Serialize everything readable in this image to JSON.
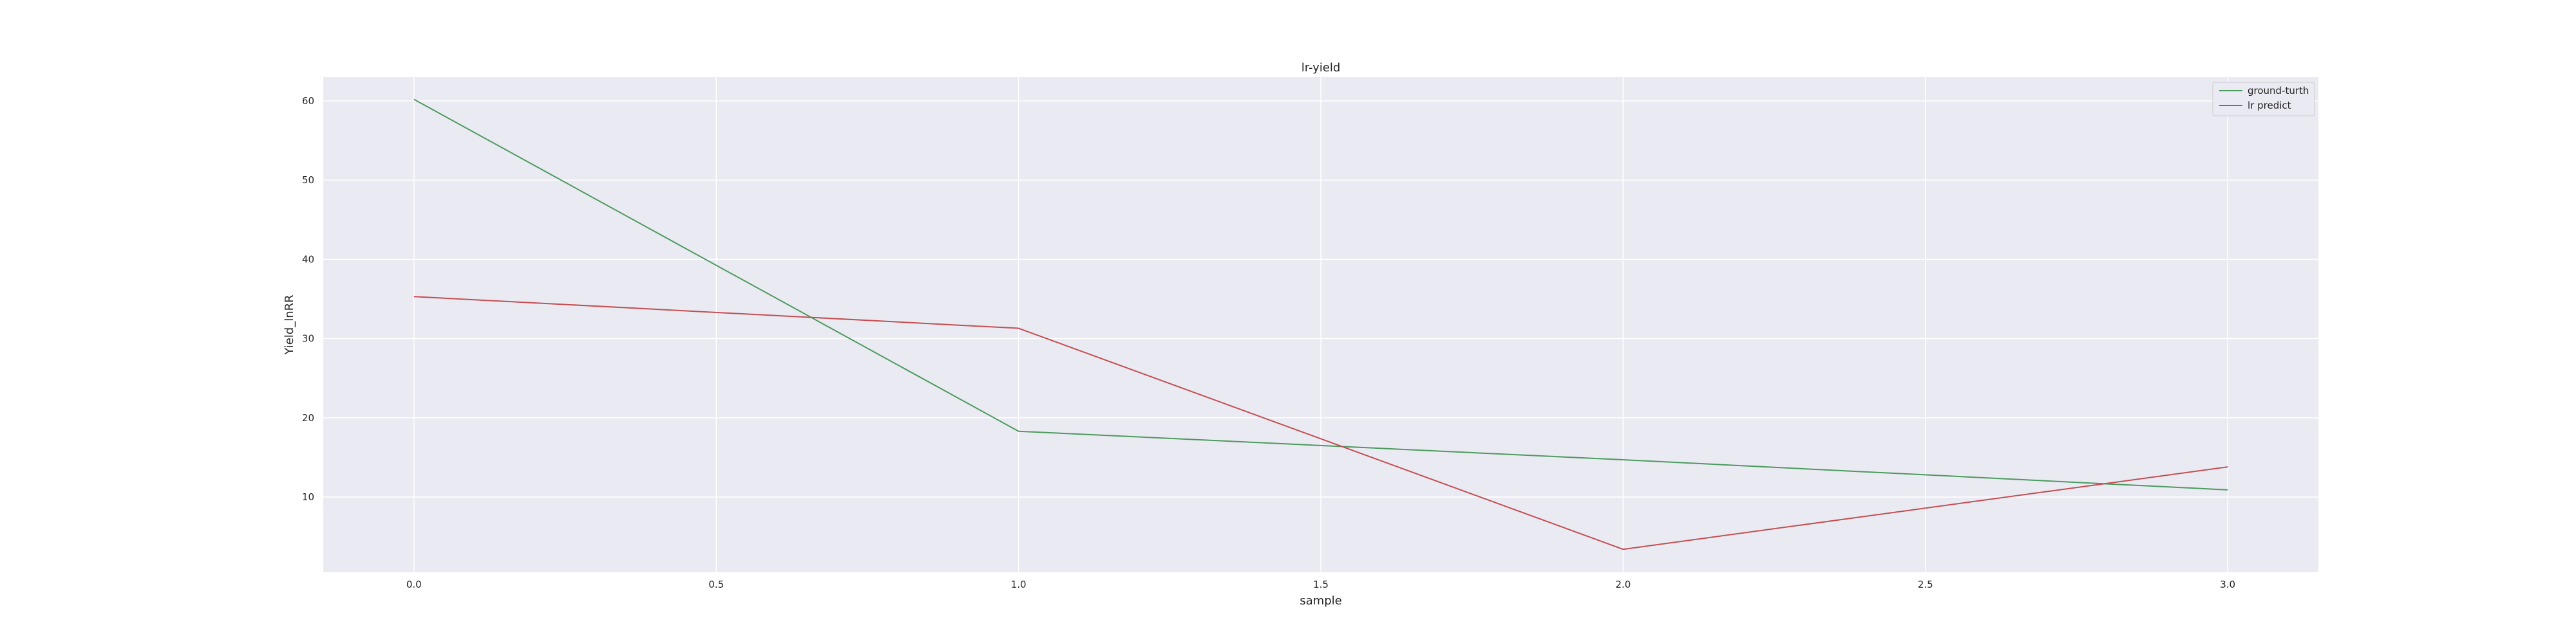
{
  "chart_data": {
    "type": "line",
    "title": "lr-yield",
    "xlabel": "sample",
    "ylabel": "Yield_lnRR",
    "x": [
      0,
      1,
      2,
      3
    ],
    "xlim": [
      -0.15,
      3.15
    ],
    "ylim": [
      0.5,
      63
    ],
    "xticks": [
      0.0,
      0.5,
      1.0,
      1.5,
      2.0,
      2.5,
      3.0
    ],
    "xtick_labels": [
      "0.0",
      "0.5",
      "1.0",
      "1.5",
      "2.0",
      "2.5",
      "3.0"
    ],
    "yticks": [
      10,
      20,
      30,
      40,
      50,
      60
    ],
    "ytick_labels": [
      "10",
      "20",
      "30",
      "40",
      "50",
      "60"
    ],
    "grid": true,
    "background": "#eaeaf2",
    "grid_color": "#ffffff",
    "legend_position": "top-right",
    "series": [
      {
        "name": "ground-turth",
        "color": "#4c9a5e",
        "values": [
          60.2,
          18.3,
          14.7,
          10.9
        ]
      },
      {
        "name": "lr predict",
        "color": "#c44e52",
        "values": [
          35.3,
          31.3,
          3.4,
          13.8
        ]
      }
    ]
  }
}
